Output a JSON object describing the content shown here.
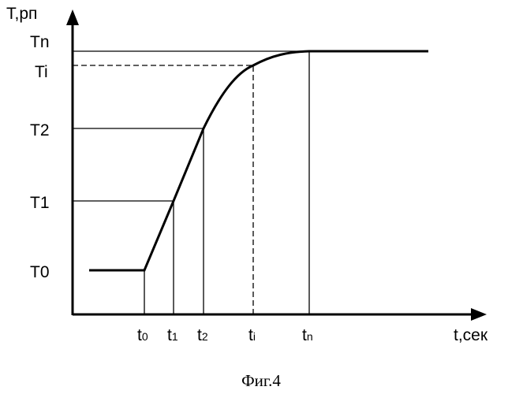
{
  "axes": {
    "y_label": "T,рп",
    "x_label": "t,сек"
  },
  "y_levels": [
    "Tn",
    "Ti",
    "T2",
    "T1",
    "T0"
  ],
  "x_marks": [
    {
      "base": "t",
      "sub": "0"
    },
    {
      "base": "t",
      "sub": "1"
    },
    {
      "base": "t",
      "sub": "2"
    },
    {
      "base": "t",
      "sub": "i"
    },
    {
      "base": "t",
      "sub": "n"
    }
  ],
  "caption": "Фиг.4"
}
